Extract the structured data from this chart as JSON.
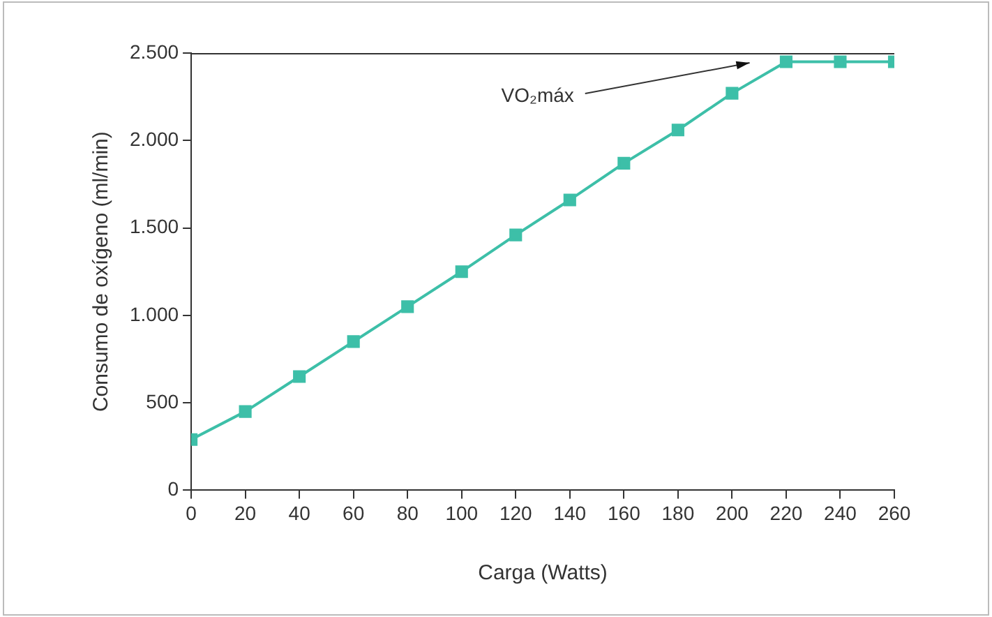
{
  "chart_data": {
    "type": "line",
    "xlabel": "Carga (Watts)",
    "ylabel": "Consumo de oxígeno (ml/min)",
    "x": [
      0,
      20,
      40,
      60,
      80,
      100,
      120,
      140,
      160,
      180,
      200,
      220,
      240,
      260
    ],
    "series": [
      {
        "color": "#3dbfa8",
        "values": [
          290,
          450,
          650,
          850,
          1050,
          1250,
          1460,
          1660,
          1870,
          2060,
          2270,
          2450,
          2450,
          2450
        ]
      }
    ],
    "xlim": [
      0,
      260
    ],
    "xticks": [
      0,
      20,
      40,
      60,
      80,
      100,
      120,
      140,
      160,
      180,
      200,
      220,
      240,
      260
    ],
    "ylim": [
      0,
      2500
    ],
    "yticks": [
      0,
      500,
      {
        "value": 1000,
        "label": "1.000"
      },
      {
        "value": 1500,
        "label": "1.500"
      },
      {
        "value": 2000,
        "label": "2.000"
      },
      {
        "value": 2500,
        "label": "2.500"
      }
    ],
    "annotations": [
      "VO₂máx"
    ],
    "marker": "square",
    "line_style": "solid",
    "grid": false,
    "legend": false
  }
}
